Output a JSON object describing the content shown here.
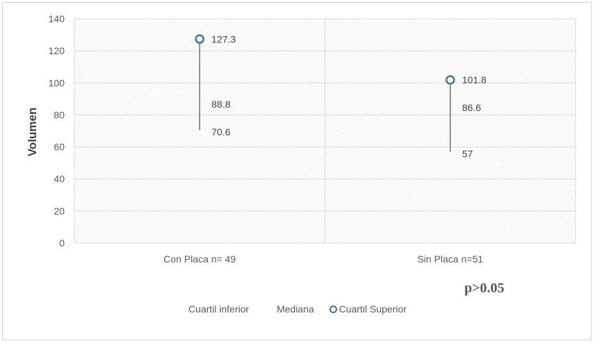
{
  "chart_data": {
    "type": "scatter",
    "ylabel": "Volumen",
    "xlabel": "",
    "ylim": [
      0,
      140
    ],
    "yticks": [
      0,
      20,
      40,
      60,
      80,
      100,
      120,
      140
    ],
    "categories": [
      "Con Placa n= 49",
      "Sin Placa n=51"
    ],
    "series": [
      {
        "name": "Cuartil inferior",
        "values": [
          70.6,
          57
        ]
      },
      {
        "name": "Mediana",
        "values": [
          88.8,
          86.6
        ]
      },
      {
        "name": "Cuartil Superior",
        "values": [
          127.3,
          101.8
        ]
      }
    ],
    "data_labels": {
      "lower": [
        "70.6",
        "57"
      ],
      "median": [
        "88.8",
        "86.6"
      ],
      "upper": [
        "127.3",
        "101.8"
      ]
    },
    "annotation": "p>0.05",
    "grid": true,
    "legend_position": "bottom",
    "colors": {
      "marker": "#41719c",
      "line": "#595959",
      "grid": "#d9d9d9"
    }
  }
}
